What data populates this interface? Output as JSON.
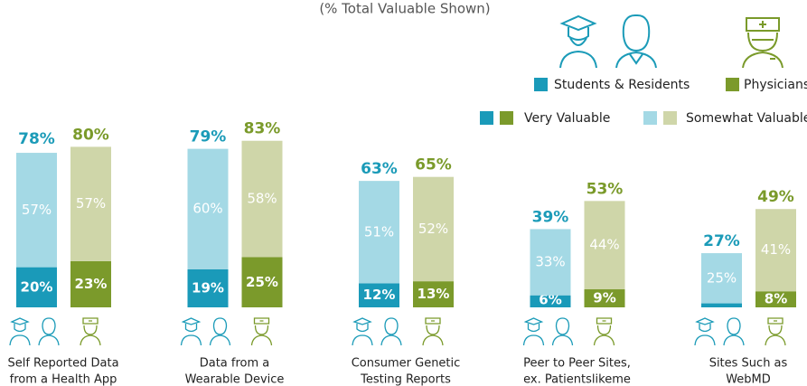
{
  "chart_data": {
    "type": "stacked_bar",
    "subtitle": "(% Total Valuable Shown)",
    "categories": [
      [
        "Self Reported Data",
        "from a Health App"
      ],
      [
        "Data from a",
        "Wearable Device"
      ],
      [
        "Consumer Genetic",
        "Testing Reports"
      ],
      [
        "Peer to Peer Sites,",
        "ex. Patientslikeme"
      ],
      [
        "Sites Such as",
        "WebMD"
      ]
    ],
    "stack_names": [
      "Very Valuable",
      "Somewhat Valuable"
    ],
    "ylim": [
      0,
      100
    ],
    "bar_groups": [
      {
        "name": "Students & Residents",
        "total_color": "#1b9bb8",
        "segments": [
          {
            "color": "#1a9ab9",
            "values": [
              20,
              19,
              12,
              6,
              2
            ],
            "value_labels": [
              "20%",
              "19%",
              "12%",
              "6%",
              null
            ]
          },
          {
            "color": "#a4d9e5",
            "values": [
              57,
              60,
              51,
              33,
              25
            ],
            "value_labels": [
              "57%",
              "60%",
              "51%",
              "33%",
              "25%"
            ]
          }
        ],
        "totals": [
          78,
          79,
          63,
          39,
          27
        ],
        "total_labels": [
          "78%",
          "79%",
          "63%",
          "39%",
          "27%"
        ]
      },
      {
        "name": "Physicians",
        "total_color": "#7a9a2a",
        "segments": [
          {
            "color": "#7b9a2b",
            "values": [
              23,
              25,
              13,
              9,
              8
            ],
            "value_labels": [
              "23%",
              "25%",
              "13%",
              "9%",
              "8%"
            ]
          },
          {
            "color": "#cfd6a9",
            "values": [
              57,
              58,
              52,
              44,
              41
            ],
            "value_labels": [
              "57%",
              "58%",
              "52%",
              "44%",
              "41%"
            ]
          }
        ],
        "totals": [
          80,
          83,
          65,
          53,
          49
        ],
        "total_labels": [
          "80%",
          "83%",
          "65%",
          "53%",
          "49%"
        ]
      }
    ]
  }
}
